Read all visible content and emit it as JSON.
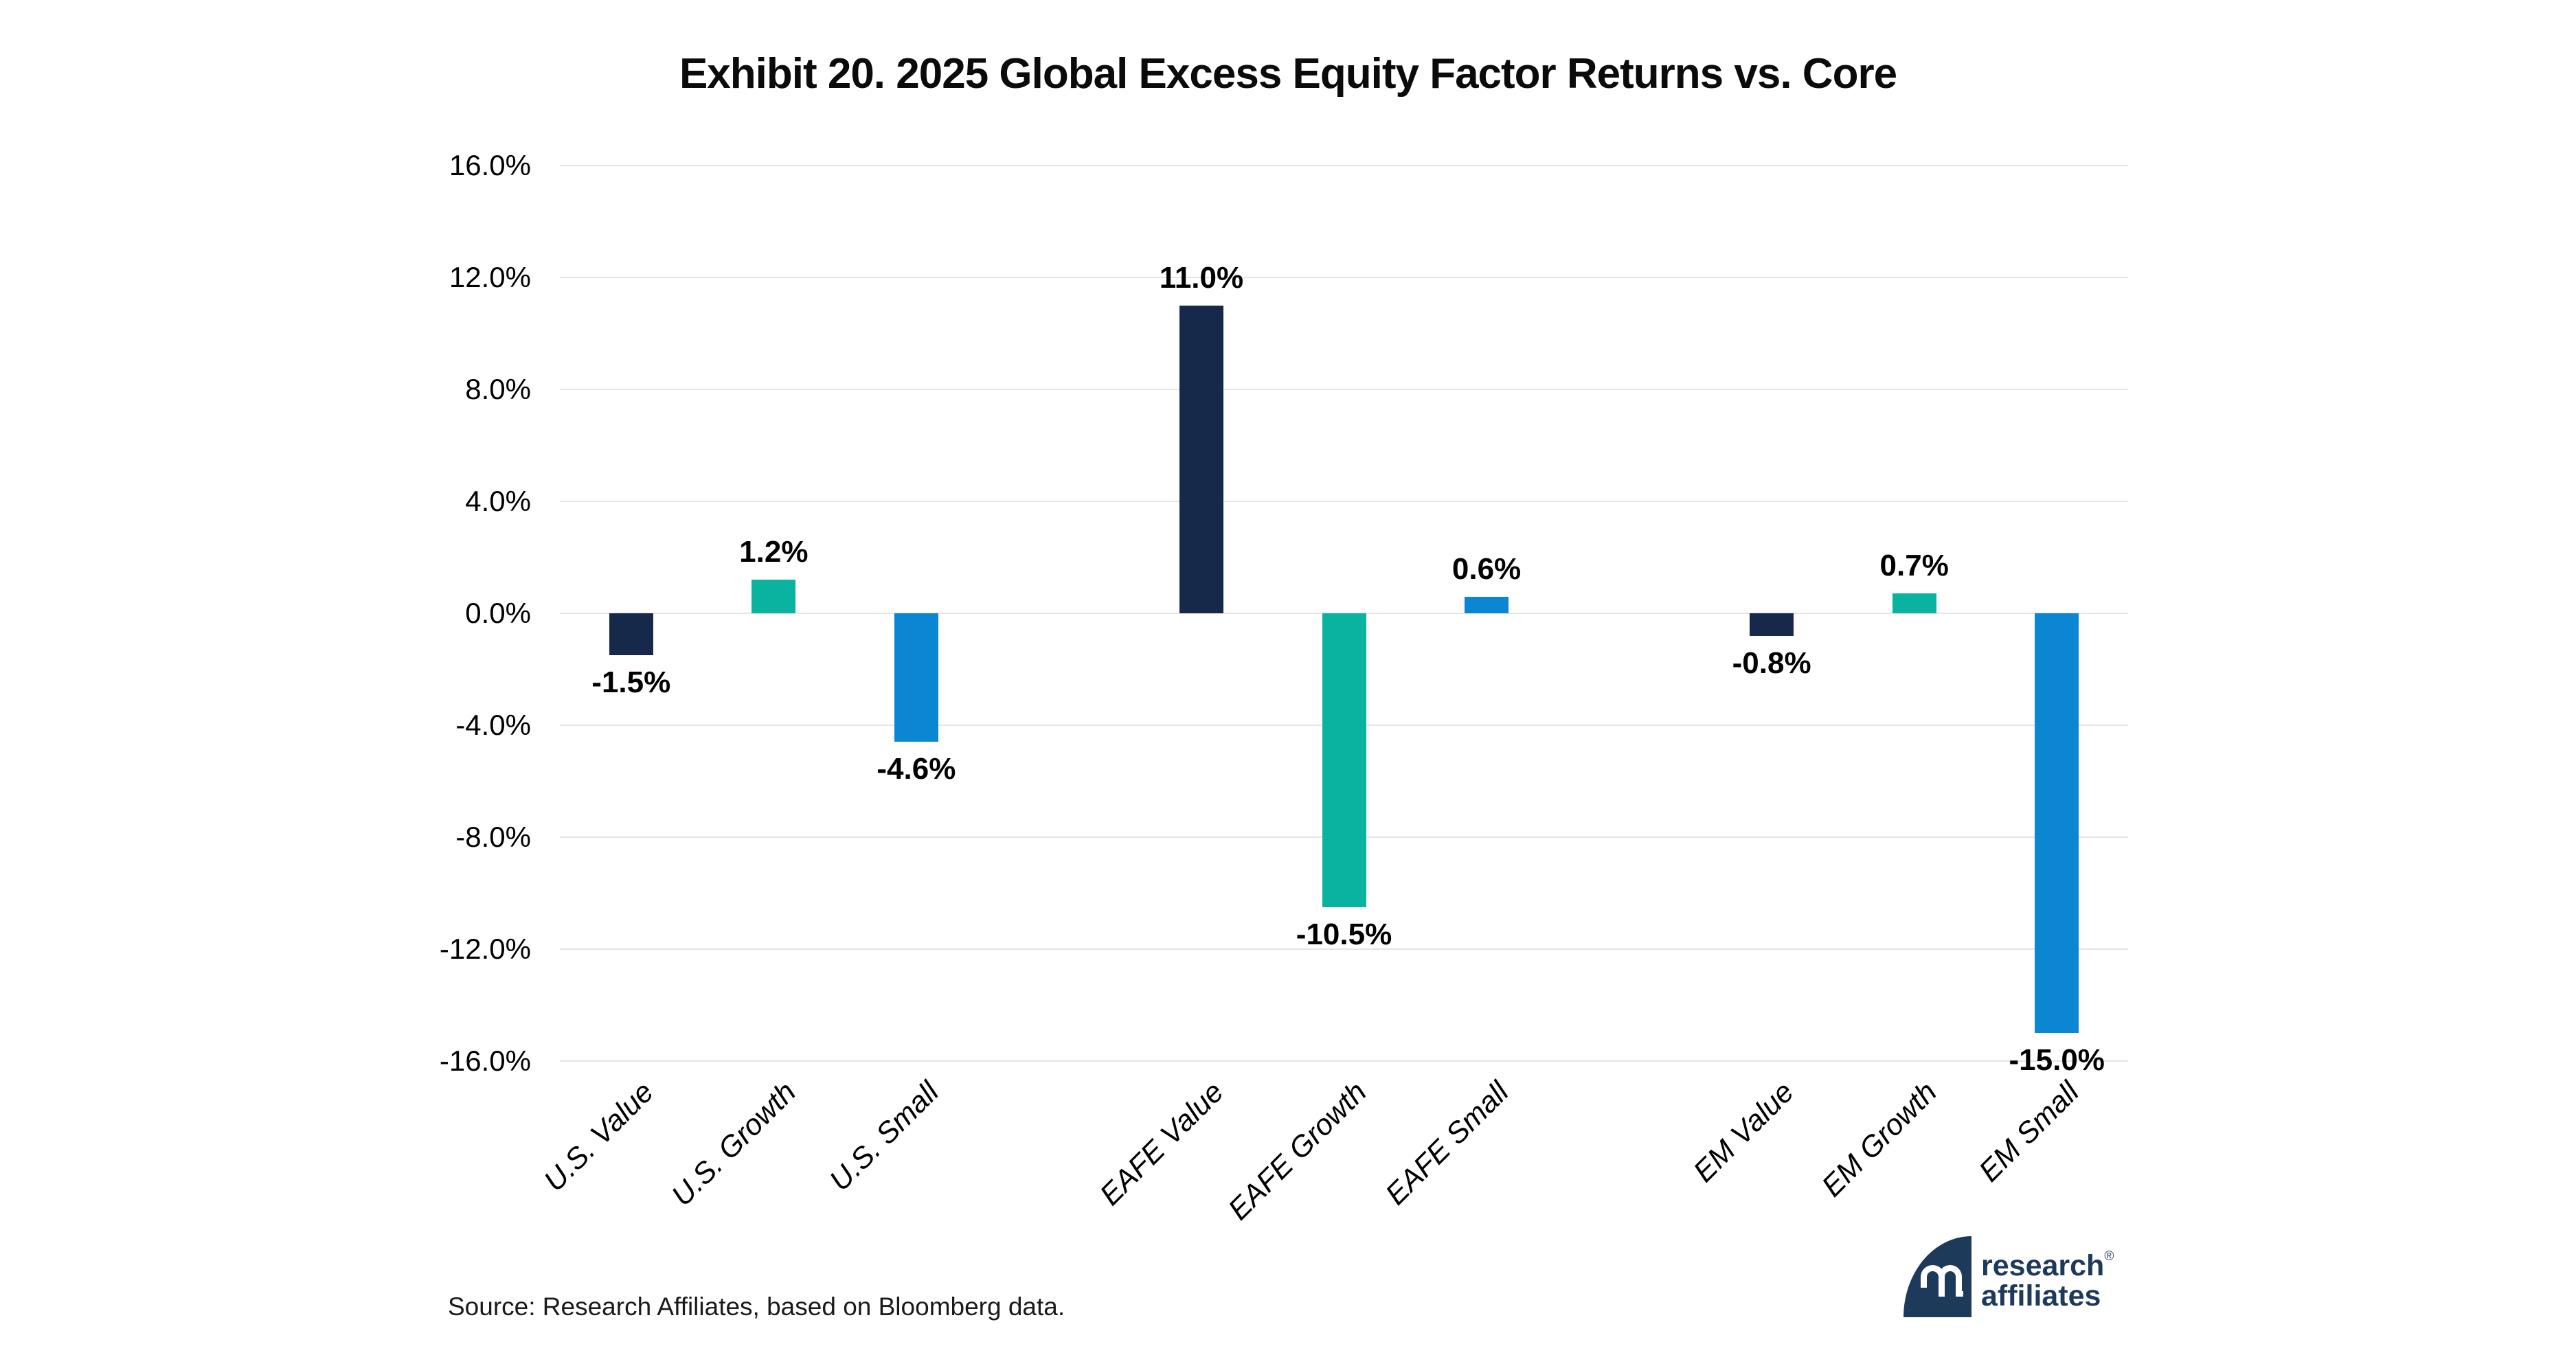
{
  "title": "Exhibit 20. 2025 Global Excess Equity Factor Returns vs. Core",
  "source": "Source: Research Affiliates, based on Bloomberg data.",
  "logo": {
    "line1": "research",
    "line2": "affiliates",
    "registered": "®"
  },
  "colors": {
    "value_bar": "#17294a",
    "growth_bar": "#0ab3a0",
    "small_bar": "#0b86d3",
    "gridline": "#e5e5e5",
    "logo_navy": "#1e3a5a",
    "text": "#000000"
  },
  "chart_data": {
    "type": "bar",
    "title": "Exhibit 20. 2025 Global Excess Equity Factor Returns vs. Core",
    "categories": [
      "U.S. Value",
      "U.S. Growth",
      "U.S. Small",
      "EAFE Value",
      "EAFE Growth",
      "EAFE Small",
      "EM Value",
      "EM Growth",
      "EM Small"
    ],
    "values": [
      -1.5,
      1.2,
      -4.6,
      11.0,
      -10.5,
      0.6,
      -0.8,
      0.7,
      -15.0
    ],
    "value_labels": [
      "-1.5%",
      "1.2%",
      "-4.6%",
      "11.0%",
      "-10.5%",
      "0.6%",
      "-0.8%",
      "0.7%",
      "-15.0%"
    ],
    "bar_colors": [
      "#17294a",
      "#0ab3a0",
      "#0b86d3",
      "#17294a",
      "#0ab3a0",
      "#0b86d3",
      "#17294a",
      "#0ab3a0",
      "#0b86d3"
    ],
    "group_size": 3,
    "ytick_labels": [
      "16.0%",
      "12.0%",
      "8.0%",
      "4.0%",
      "0.0%",
      "-4.0%",
      "-8.0%",
      "-12.0%",
      "-16.0%"
    ],
    "ytick_values": [
      16,
      12,
      8,
      4,
      0,
      -4,
      -8,
      -12,
      -16
    ],
    "ylim": [
      -16,
      16
    ],
    "xlabel": "",
    "ylabel": "",
    "grid": "horizontal",
    "legend": "none"
  }
}
